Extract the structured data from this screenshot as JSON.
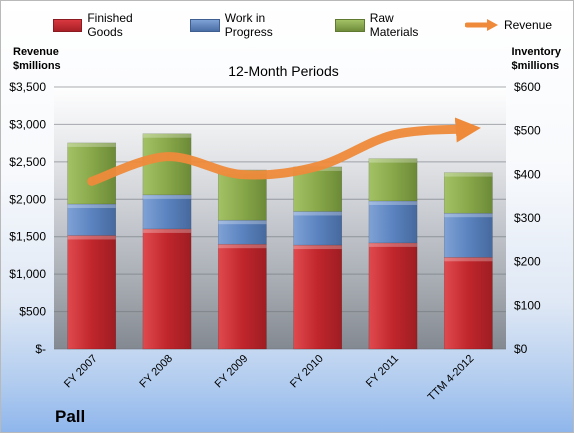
{
  "chart_data": {
    "type": "bar",
    "stacked": true,
    "title": "12-Month Periods",
    "categories": [
      "FY 2007",
      "FY 2008",
      "FY 2009",
      "FY 2010",
      "FY 2011",
      "TTM 4-2012"
    ],
    "series": [
      {
        "name": "Finished Goods",
        "axis": "right",
        "color": "#c0262c",
        "values": [
          260,
          275,
          240,
          238,
          243,
          210
        ]
      },
      {
        "name": "Work in Progress",
        "axis": "right",
        "color": "#5b83bf",
        "values": [
          72,
          78,
          55,
          77,
          96,
          101
        ]
      },
      {
        "name": "Raw Materials",
        "axis": "right",
        "color": "#88a84a",
        "values": [
          140,
          140,
          115,
          102,
          97,
          93
        ]
      },
      {
        "name": "Revenue",
        "axis": "left",
        "type": "line",
        "color": "#ee8a3a",
        "values": [
          2240,
          2570,
          2330,
          2440,
          2860,
          2940
        ]
      }
    ],
    "left_axis": {
      "label_line1": "Revenue",
      "label_line2": "$millions",
      "ylim": [
        0,
        3500
      ],
      "tick_labels": [
        "$-",
        "$500",
        "$1,000",
        "$1,500",
        "$2,000",
        "$2,500",
        "$3,000",
        "$3,500"
      ]
    },
    "right_axis": {
      "label_line1": "Inventory",
      "label_line2": "$millions",
      "ylim": [
        0,
        600
      ],
      "tick_labels": [
        "$0",
        "$100",
        "$200",
        "$300",
        "$400",
        "$500",
        "$600"
      ]
    },
    "grid": true,
    "legend_position": "top"
  },
  "company": "Pall"
}
